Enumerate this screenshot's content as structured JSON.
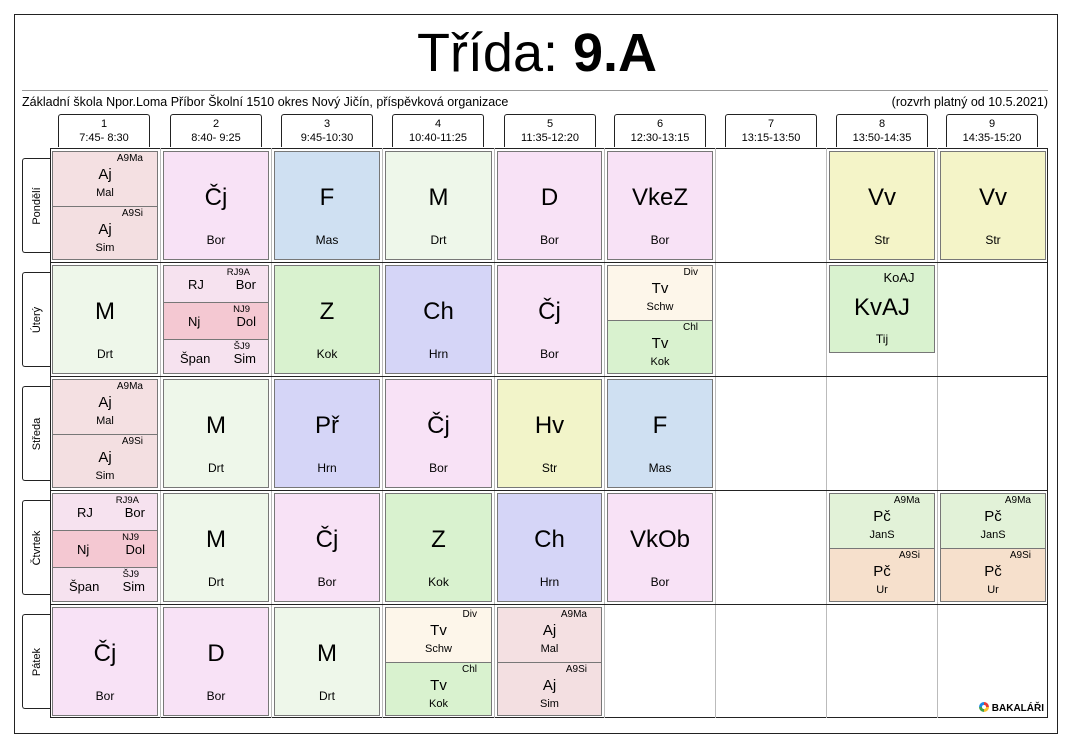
{
  "header": {
    "title_prefix": "Třída: ",
    "class_name": "9.A",
    "school": "Základní škola Npor.Loma Příbor Školní 1510 okres Nový Jičín, příspěvková organizace",
    "valid_from": "(rozvrh platný od 10.5.2021)"
  },
  "periods": [
    {
      "num": "1",
      "time": "7:45- 8:30"
    },
    {
      "num": "2",
      "time": "8:40- 9:25"
    },
    {
      "num": "3",
      "time": "9:45-10:30"
    },
    {
      "num": "4",
      "time": "10:40-11:25"
    },
    {
      "num": "5",
      "time": "11:35-12:20"
    },
    {
      "num": "6",
      "time": "12:30-13:15"
    },
    {
      "num": "7",
      "time": "13:15-13:50"
    },
    {
      "num": "8",
      "time": "13:50-14:35"
    },
    {
      "num": "9",
      "time": "14:35-15:20"
    }
  ],
  "days": [
    "Pondělí",
    "Úterý",
    "Středa",
    "Čtvrtek",
    "Pátek"
  ],
  "cells": {
    "mon": {
      "p1": {
        "a": {
          "grp": "A9Ma",
          "subj": "Aj",
          "tch": "Mal"
        },
        "b": {
          "grp": "A9Si",
          "subj": "Aj",
          "tch": "Sim"
        }
      },
      "p2": {
        "subj": "Čj",
        "tch": "Bor"
      },
      "p3": {
        "subj": "F",
        "tch": "Mas"
      },
      "p4": {
        "subj": "M",
        "tch": "Drt"
      },
      "p5": {
        "subj": "D",
        "tch": "Bor"
      },
      "p6": {
        "subj": "VkeZ",
        "tch": "Bor"
      },
      "p8": {
        "subj": "Vv",
        "tch": "Str"
      },
      "p9": {
        "subj": "Vv",
        "tch": "Str"
      }
    },
    "tue": {
      "p1": {
        "subj": "M",
        "tch": "Drt"
      },
      "p2": {
        "a": {
          "grp": "RJ9A",
          "subj": "RJ",
          "tch": "Bor"
        },
        "b": {
          "grp": "NJ9",
          "subj": "Nj",
          "tch": "Dol"
        },
        "c": {
          "grp": "ŠJ9",
          "subj": "Špan",
          "tch": "Sim"
        }
      },
      "p3": {
        "subj": "Z",
        "tch": "Kok"
      },
      "p4": {
        "subj": "Ch",
        "tch": "Hrn"
      },
      "p5": {
        "subj": "Čj",
        "tch": "Bor"
      },
      "p6": {
        "a": {
          "grp": "Div",
          "subj": "Tv",
          "tch": "Schw"
        },
        "b": {
          "grp": "Chl",
          "subj": "Tv",
          "tch": "Kok"
        }
      },
      "p8": {
        "grp": "KoAJ",
        "subj": "KvAJ",
        "tch": "Tij"
      }
    },
    "wed": {
      "p1": {
        "a": {
          "grp": "A9Ma",
          "subj": "Aj",
          "tch": "Mal"
        },
        "b": {
          "grp": "A9Si",
          "subj": "Aj",
          "tch": "Sim"
        }
      },
      "p2": {
        "subj": "M",
        "tch": "Drt"
      },
      "p3": {
        "subj": "Př",
        "tch": "Hrn"
      },
      "p4": {
        "subj": "Čj",
        "tch": "Bor"
      },
      "p5": {
        "subj": "Hv",
        "tch": "Str"
      },
      "p6": {
        "subj": "F",
        "tch": "Mas"
      }
    },
    "thu": {
      "p1": {
        "a": {
          "grp": "RJ9A",
          "subj": "RJ",
          "tch": "Bor"
        },
        "b": {
          "grp": "NJ9",
          "subj": "Nj",
          "tch": "Dol"
        },
        "c": {
          "grp": "ŠJ9",
          "subj": "Špan",
          "tch": "Sim"
        }
      },
      "p2": {
        "subj": "M",
        "tch": "Drt"
      },
      "p3": {
        "subj": "Čj",
        "tch": "Bor"
      },
      "p4": {
        "subj": "Z",
        "tch": "Kok"
      },
      "p5": {
        "subj": "Ch",
        "tch": "Hrn"
      },
      "p6": {
        "subj": "VkOb",
        "tch": "Bor"
      },
      "p8": {
        "a": {
          "grp": "A9Ma",
          "subj": "Pč",
          "tch": "JanS"
        },
        "b": {
          "grp": "A9Si",
          "subj": "Pč",
          "tch": "Ur"
        }
      },
      "p9": {
        "a": {
          "grp": "A9Ma",
          "subj": "Pč",
          "tch": "JanS"
        },
        "b": {
          "grp": "A9Si",
          "subj": "Pč",
          "tch": "Ur"
        }
      }
    },
    "fri": {
      "p1": {
        "subj": "Čj",
        "tch": "Bor"
      },
      "p2": {
        "subj": "D",
        "tch": "Bor"
      },
      "p3": {
        "subj": "M",
        "tch": "Drt"
      },
      "p4": {
        "a": {
          "grp": "Div",
          "subj": "Tv",
          "tch": "Schw"
        },
        "b": {
          "grp": "Chl",
          "subj": "Tv",
          "tch": "Kok"
        }
      },
      "p5": {
        "a": {
          "grp": "A9Ma",
          "subj": "Aj",
          "tch": "Mal"
        },
        "b": {
          "grp": "A9Si",
          "subj": "Aj",
          "tch": "Sim"
        }
      }
    }
  },
  "footer": {
    "logo_text": "BAKALÁŘI"
  },
  "colors": {
    "frame": "#222222",
    "grid_line": "#777777"
  }
}
